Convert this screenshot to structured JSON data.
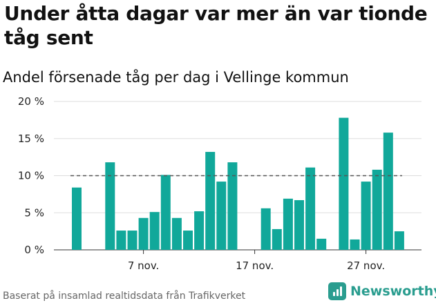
{
  "header": {
    "title": "Under åtta dagar var mer än var tionde tåg sent",
    "subtitle": "Andel försenade tåg per dag i Vellinge kommun"
  },
  "footer": {
    "source": "Baserat på insamlad realtidsdata från Trafikverket",
    "brand": "Newsworthy"
  },
  "colors": {
    "bar": "#11a89a",
    "reference_line": "#555555",
    "grid": "#dddddd",
    "brand": "#2a9d8f"
  },
  "chart_data": {
    "type": "bar",
    "title": "Under åtta dagar var mer än var tionde tåg sent",
    "subtitle": "Andel försenade tåg per dag i Vellinge kommun",
    "xlabel": "",
    "ylabel": "",
    "ylim": [
      0,
      20
    ],
    "y_ticks": [
      0,
      5,
      10,
      15,
      20
    ],
    "y_tick_labels": [
      "0 %",
      "5 %",
      "10 %",
      "15 %",
      "20 %"
    ],
    "x_tick_labels": [
      {
        "label": "7 nov.",
        "day": 7
      },
      {
        "label": "17 nov.",
        "day": 17
      },
      {
        "label": "27 nov.",
        "day": 27
      }
    ],
    "reference_line": 10,
    "grid": true,
    "days": [
      1,
      2,
      3,
      4,
      5,
      6,
      7,
      8,
      9,
      10,
      11,
      12,
      13,
      14,
      15,
      16,
      17,
      18,
      19,
      20,
      21,
      22,
      23,
      24,
      25,
      26,
      27,
      28,
      29,
      30,
      31
    ],
    "values": [
      8.4,
      null,
      null,
      11.8,
      2.6,
      2.6,
      4.3,
      5.1,
      10.1,
      4.3,
      2.6,
      5.2,
      13.2,
      9.2,
      11.8,
      null,
      null,
      5.6,
      2.8,
      6.9,
      6.7,
      11.1,
      1.5,
      null,
      17.8,
      1.4,
      9.2,
      10.8,
      15.8,
      2.5,
      null
    ]
  }
}
